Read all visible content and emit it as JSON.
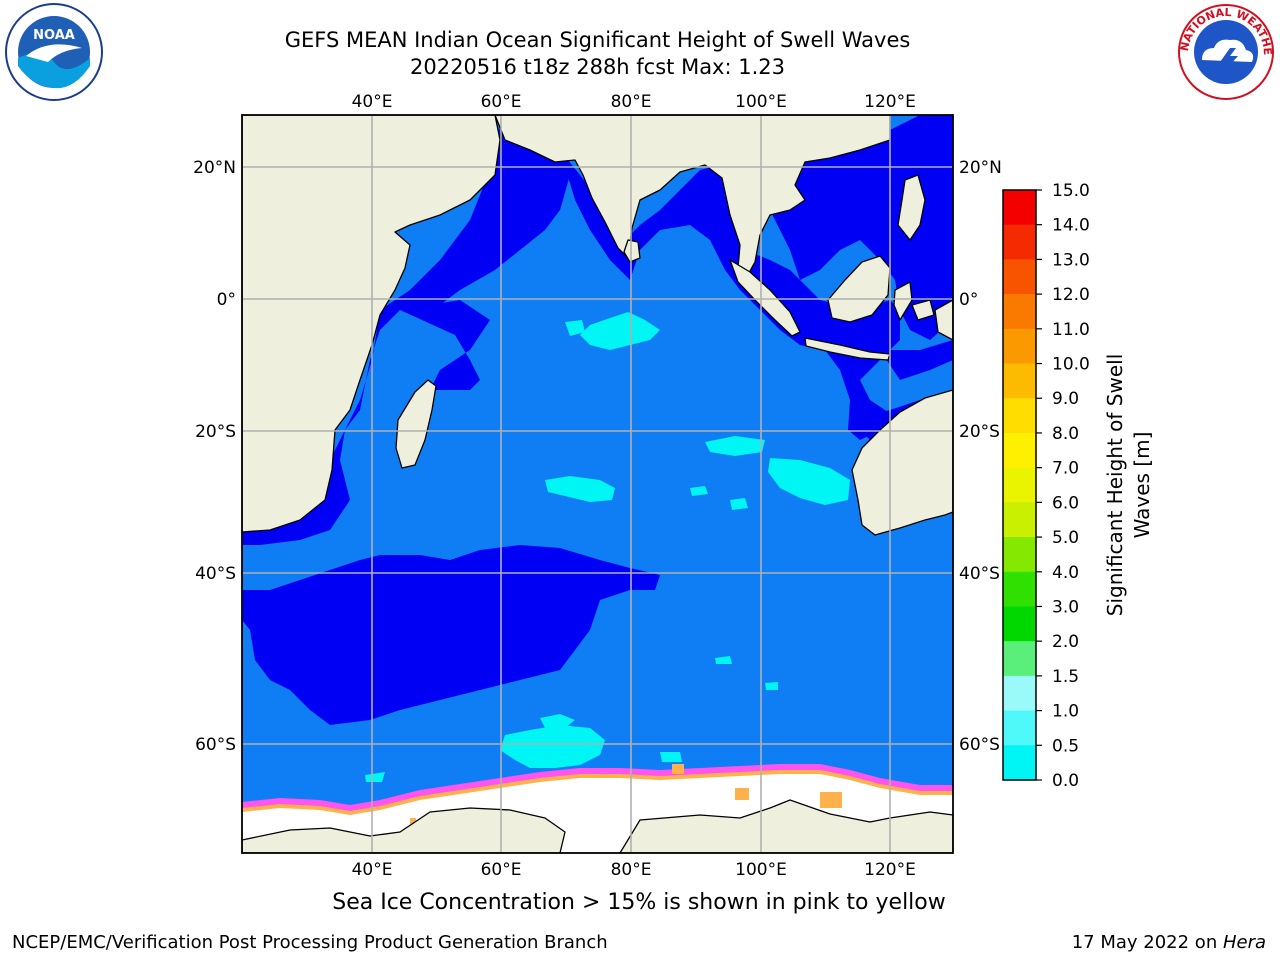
{
  "title": {
    "line1": "GEFS MEAN Indian Ocean Significant Height of Swell Waves",
    "line2": "20220516 t18z 288h fcst   Max: 1.23"
  },
  "map": {
    "lon_labels": [
      "40°E",
      "60°E",
      "80°E",
      "100°E",
      "120°E"
    ],
    "lat_labels": [
      "20°N",
      "0°",
      "20°S",
      "40°S",
      "60°S"
    ],
    "colors": {
      "ocean_0_0_5": "#0000f5",
      "ocean_0_5_1_0": "#0f7ef5",
      "ocean_1_0_1_5": "#00f5f5",
      "land": "#efefdd",
      "ice_white": "#ffffff",
      "ice_pink": "#ff55ee",
      "ice_orange": "#ffb24c",
      "grid": "#b0b0b0"
    }
  },
  "colorbar": {
    "title_line1": "Significant Height of Swell",
    "title_line2": "Waves [m]",
    "labels": [
      "15.0",
      "14.0",
      "13.0",
      "12.0",
      "11.0",
      "10.0",
      "9.0",
      "8.0",
      "7.0",
      "6.0",
      "5.0",
      "4.0",
      "3.0",
      "2.0",
      "1.5",
      "1.0",
      "0.5",
      "0.0"
    ],
    "colors": [
      "#f40000",
      "#f62a00",
      "#f85400",
      "#fa7a00",
      "#fb9a00",
      "#fdbb00",
      "#ffdd00",
      "#fff000",
      "#eaf400",
      "#c8f000",
      "#84e800",
      "#30e000",
      "#00d800",
      "#5aef7a",
      "#9af9f9",
      "#50f9f9",
      "#00f5f5",
      "#0f7ef5",
      "#0000f5"
    ]
  },
  "caption": "Sea Ice Concentration > 15% is shown in pink to yellow",
  "footer": {
    "left": "NCEP/EMC/Verification Post Processing Product Generation Branch",
    "right_date": "17 May 2022 on ",
    "right_machine": "Hera"
  },
  "logos": {
    "noaa_text": "NOAA",
    "nws_ring_text": "NATIONAL WEATHER SERVICE"
  }
}
